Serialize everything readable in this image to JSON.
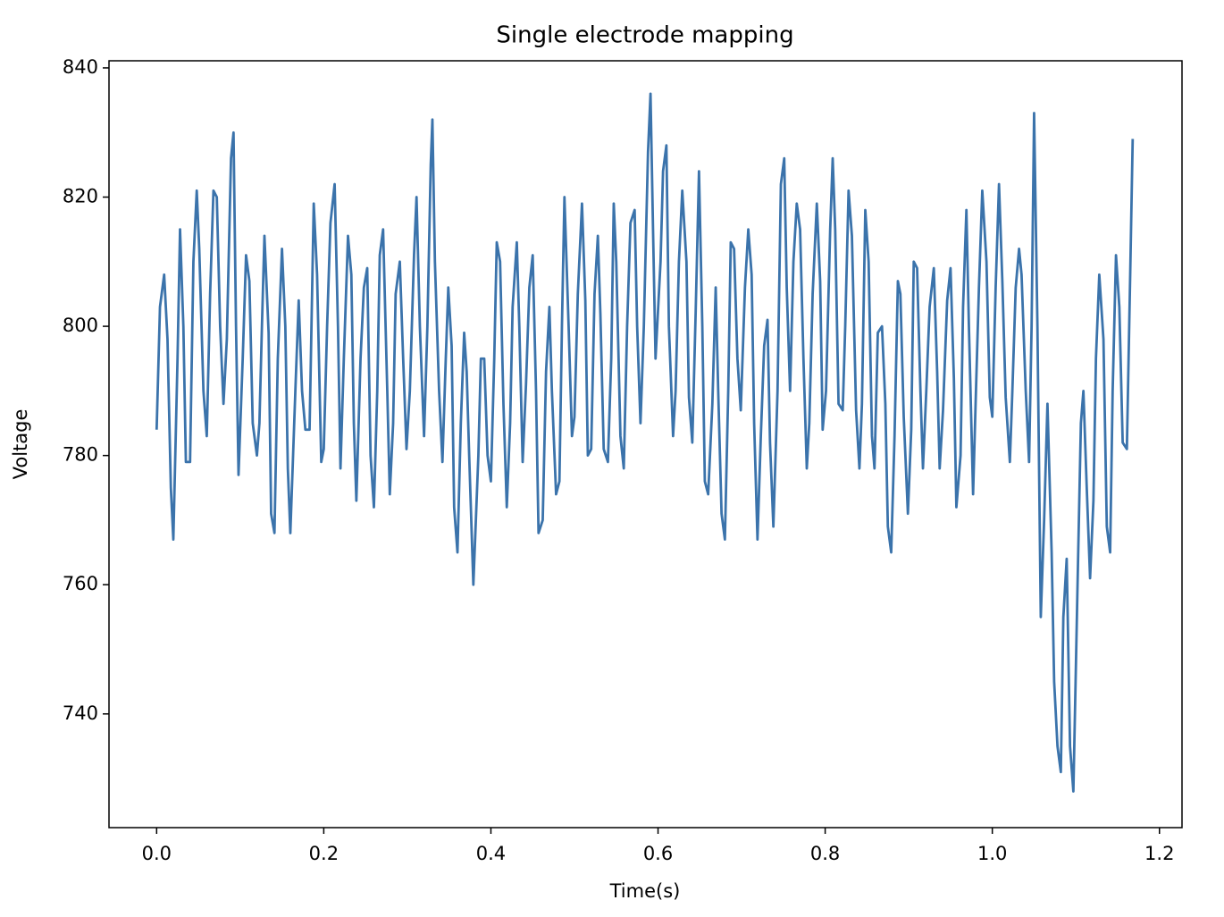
{
  "chart_data": {
    "type": "line",
    "title": "Single electrode mapping",
    "x_label": "Time(s)",
    "y_label": "Voltage",
    "xlim": [
      -0.057,
      1.227
    ],
    "ylim": [
      722.4,
      841.1
    ],
    "xticks": [
      {
        "value": 0,
        "label": "0.0"
      },
      0.2,
      0.4,
      0.6,
      0.8,
      {
        "value": 1,
        "label": "1.0"
      },
      1.2
    ],
    "yticks": [
      740,
      760,
      780,
      800,
      820,
      840
    ],
    "x": [
      0,
      0.004,
      0.009,
      0.013,
      0.017,
      0.02,
      0.025,
      0.028,
      0.032,
      0.035,
      0.04,
      0.044,
      0.048,
      0.051,
      0.056,
      0.06,
      0.064,
      0.068,
      0.072,
      0.076,
      0.08,
      0.084,
      0.089,
      0.092,
      0.095,
      0.098,
      0.103,
      0.107,
      0.111,
      0.115,
      0.12,
      0.123,
      0.126,
      0.129,
      0.134,
      0.137,
      0.141,
      0.145,
      0.15,
      0.154,
      0.157,
      0.16,
      0.166,
      0.17,
      0.174,
      0.178,
      0.183,
      0.188,
      0.192,
      0.197,
      0.2,
      0.204,
      0.208,
      0.213,
      0.217,
      0.22,
      0.224,
      0.229,
      0.233,
      0.236,
      0.239,
      0.244,
      0.248,
      0.252,
      0.256,
      0.26,
      0.264,
      0.267,
      0.271,
      0.276,
      0.279,
      0.283,
      0.286,
      0.291,
      0.295,
      0.299,
      0.303,
      0.308,
      0.311,
      0.315,
      0.32,
      0.324,
      0.328,
      0.33,
      0.333,
      0.338,
      0.342,
      0.346,
      0.349,
      0.353,
      0.356,
      0.36,
      0.364,
      0.368,
      0.371,
      0.374,
      0.379,
      0.385,
      0.388,
      0.392,
      0.396,
      0.4,
      0.404,
      0.407,
      0.411,
      0.415,
      0.419,
      0.423,
      0.426,
      0.431,
      0.434,
      0.438,
      0.442,
      0.446,
      0.45,
      0.454,
      0.457,
      0.462,
      0.466,
      0.47,
      0.473,
      0.478,
      0.482,
      0.485,
      0.488,
      0.493,
      0.497,
      0.5,
      0.504,
      0.509,
      0.513,
      0.516,
      0.52,
      0.524,
      0.528,
      0.531,
      0.535,
      0.54,
      0.544,
      0.547,
      0.55,
      0.555,
      0.559,
      0.563,
      0.567,
      0.572,
      0.575,
      0.579,
      0.583,
      0.588,
      0.591,
      0.594,
      0.597,
      0.603,
      0.606,
      0.61,
      0.613,
      0.618,
      0.621,
      0.625,
      0.629,
      0.634,
      0.637,
      0.641,
      0.645,
      0.649,
      0.653,
      0.656,
      0.66,
      0.665,
      0.669,
      0.672,
      0.676,
      0.68,
      0.684,
      0.687,
      0.691,
      0.695,
      0.699,
      0.704,
      0.708,
      0.712,
      0.715,
      0.719,
      0.723,
      0.727,
      0.731,
      0.734,
      0.738,
      0.743,
      0.747,
      0.751,
      0.754,
      0.758,
      0.762,
      0.766,
      0.77,
      0.774,
      0.778,
      0.781,
      0.785,
      0.79,
      0.794,
      0.797,
      0.801,
      0.806,
      0.809,
      0.812,
      0.816,
      0.821,
      0.824,
      0.828,
      0.832,
      0.837,
      0.841,
      0.844,
      0.848,
      0.852,
      0.856,
      0.859,
      0.863,
      0.868,
      0.872,
      0.875,
      0.879,
      0.883,
      0.887,
      0.89,
      0.894,
      0.899,
      0.903,
      0.906,
      0.91,
      0.914,
      0.917,
      0.921,
      0.925,
      0.93,
      0.934,
      0.937,
      0.941,
      0.946,
      0.95,
      0.954,
      0.957,
      0.962,
      0.965,
      0.969,
      0.972,
      0.977,
      0.98,
      0.984,
      0.988,
      0.993,
      0.997,
      1.0,
      1.004,
      1.008,
      1.012,
      1.016,
      1.021,
      1.024,
      1.028,
      1.032,
      1.035,
      1.04,
      1.044,
      1.047,
      1.05,
      1.054,
      1.058,
      1.062,
      1.066,
      1.071,
      1.074,
      1.078,
      1.082,
      1.085,
      1.089,
      1.093,
      1.097,
      1.102,
      1.106,
      1.109,
      1.113,
      1.117,
      1.121,
      1.124,
      1.128,
      1.133,
      1.137,
      1.141,
      1.144,
      1.148,
      1.152,
      1.156,
      1.161,
      1.165,
      1.168
    ],
    "series": [
      {
        "color": "#3b73ab",
        "values": [
          784,
          803,
          808,
          798,
          775,
          767,
          795,
          815,
          800,
          779,
          779,
          810,
          821,
          812,
          790,
          783,
          805,
          821,
          820,
          800,
          788,
          798,
          826,
          830,
          800,
          777,
          795,
          811,
          807,
          785,
          780,
          785,
          800,
          814,
          799,
          771,
          768,
          795,
          812,
          800,
          778,
          768,
          790,
          804,
          790,
          784,
          784,
          819,
          808,
          779,
          781,
          800,
          816,
          822,
          800,
          778,
          795,
          814,
          808,
          785,
          773,
          795,
          806,
          809,
          780,
          772,
          790,
          811,
          815,
          790,
          774,
          785,
          805,
          810,
          795,
          781,
          790,
          811,
          820,
          800,
          783,
          800,
          825,
          832,
          810,
          790,
          779,
          795,
          806,
          797,
          772,
          765,
          785,
          799,
          793,
          780,
          760,
          780,
          795,
          795,
          780,
          776,
          795,
          813,
          810,
          788,
          772,
          785,
          803,
          813,
          800,
          779,
          791,
          806,
          811,
          790,
          768,
          770,
          793,
          803,
          790,
          774,
          776,
          800,
          820,
          800,
          783,
          786,
          805,
          819,
          804,
          780,
          781,
          805,
          814,
          802,
          781,
          779,
          795,
          819,
          810,
          783,
          778,
          800,
          816,
          818,
          800,
          785,
          800,
          827,
          836,
          815,
          795,
          810,
          824,
          828,
          800,
          783,
          790,
          810,
          821,
          810,
          789,
          782,
          802,
          824,
          800,
          776,
          774,
          788,
          806,
          790,
          771,
          767,
          790,
          813,
          812,
          795,
          787,
          806,
          815,
          808,
          785,
          767,
          783,
          797,
          801,
          782,
          769,
          790,
          822,
          826,
          806,
          790,
          810,
          819,
          815,
          795,
          778,
          785,
          805,
          819,
          807,
          784,
          790,
          815,
          826,
          815,
          788,
          787,
          800,
          821,
          814,
          787,
          778,
          788,
          818,
          810,
          783,
          778,
          799,
          800,
          788,
          769,
          765,
          783,
          807,
          805,
          786,
          771,
          784,
          810,
          809,
          790,
          778,
          790,
          803,
          809,
          793,
          778,
          787,
          804,
          809,
          792,
          772,
          780,
          803,
          818,
          800,
          774,
          788,
          806,
          821,
          810,
          789,
          786,
          806,
          822,
          807,
          789,
          779,
          790,
          806,
          812,
          808,
          790,
          779,
          800,
          833,
          800,
          755,
          770,
          788,
          765,
          745,
          735,
          731,
          755,
          764,
          735,
          728,
          760,
          785,
          790,
          775,
          761,
          773,
          795,
          808,
          798,
          769,
          765,
          790,
          811,
          803,
          782,
          781,
          808,
          829
        ]
      }
    ]
  }
}
